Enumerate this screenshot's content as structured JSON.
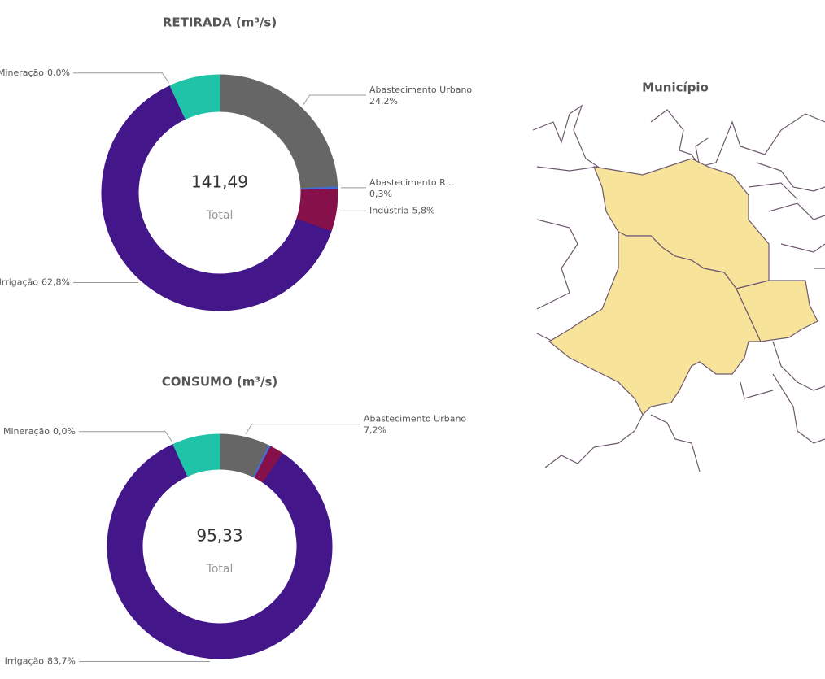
{
  "chart_data": [
    {
      "type": "donut",
      "title": "RETIRADA (m³/s)",
      "categories": [
        "Abastecimento Urbano",
        "Abastecimento R...",
        "Indústria",
        "Irrigação",
        "Mineração",
        null
      ],
      "values": [
        24.2,
        0.3,
        5.8,
        62.8,
        0.0,
        6.9
      ],
      "value_labels": [
        "24,2%",
        "0,3%",
        "5,8%",
        "62,8%",
        "0,0%",
        null
      ],
      "colors": [
        "#666666",
        "#3f6fd6",
        "#86104a",
        "#43178a",
        "#c04ab0",
        "#1fc3a7"
      ],
      "center": {
        "value": 141.49,
        "label": "141,49"
      },
      "center_caption": "Total"
    },
    {
      "type": "donut",
      "title": "CONSUMO (m³/s)",
      "categories": [
        "Abastecimento Urbano",
        null,
        null,
        "Irrigação",
        "Mineração",
        null
      ],
      "values": [
        7.2,
        0.3,
        2.0,
        83.7,
        0.0,
        6.8
      ],
      "value_labels": [
        "7,2%",
        null,
        null,
        "83,7%",
        "0,0%",
        null
      ],
      "colors": [
        "#666666",
        "#3f6fd6",
        "#86104a",
        "#43178a",
        "#c04ab0",
        "#1fc3a7"
      ],
      "center": {
        "value": 95.33,
        "label": "95,33"
      },
      "center_caption": "Total"
    }
  ],
  "map": {
    "title": "Município"
  }
}
